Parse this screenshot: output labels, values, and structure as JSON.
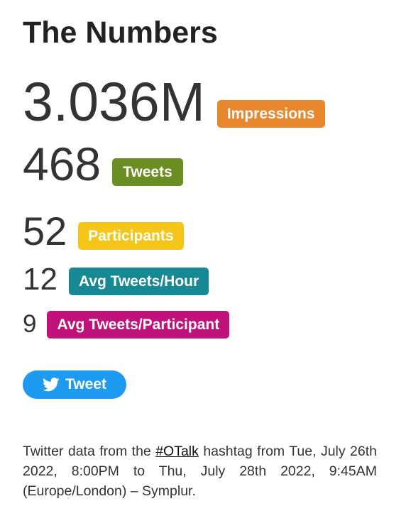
{
  "title": "The Numbers",
  "colors": {
    "impressions": "#e8872c",
    "tweets": "#6b8e23",
    "participants": "#f5c518",
    "avg_tweets_hour": "#178994",
    "avg_tweets_participant": "#c0127a",
    "tweet_button": "#1d9bf0"
  },
  "stats": [
    {
      "value": "3.036M",
      "label": "Impressions"
    },
    {
      "value": "468",
      "label": "Tweets"
    },
    {
      "value": "52",
      "label": "Participants"
    },
    {
      "value": "12",
      "label": "Avg Tweets/Hour"
    },
    {
      "value": "9",
      "label": "Avg Tweets/Participant"
    }
  ],
  "tweet_button": {
    "icon": "twitter-bird-icon",
    "label": "Tweet"
  },
  "footer": {
    "text_before": "Twitter data from the ",
    "hashtag": "#OTalk",
    "text_after": " hashtag from Tue, July 26th 2022, 8:00PM to Thu, July 28th 2022, 9:45AM (Europe/London) – Symplur."
  }
}
